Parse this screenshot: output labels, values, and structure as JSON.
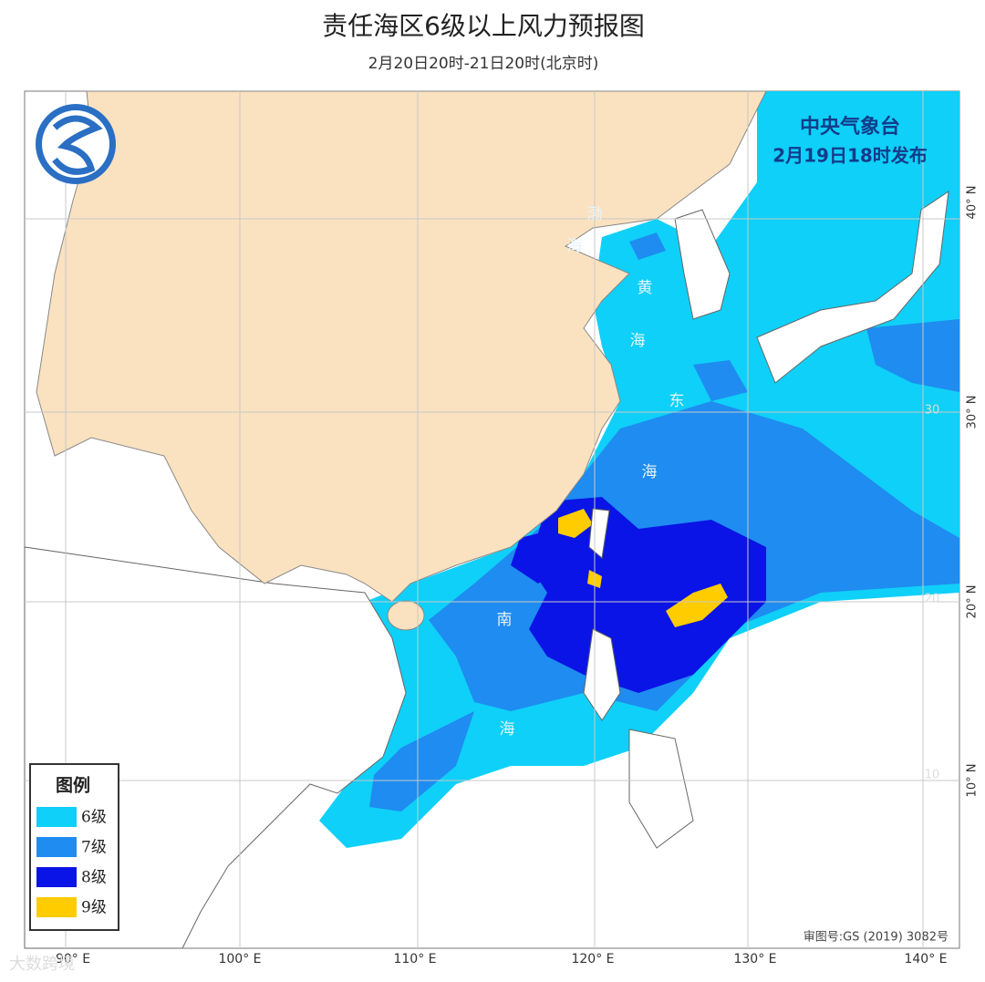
{
  "header": {
    "title": "责任海区6级以上风力预报图",
    "subtitle": "2月20日20时-21日20时(北京时)",
    "issuer": "中央气象台",
    "issued": "2月19日18时发布"
  },
  "legend": {
    "title": "图例",
    "items": [
      {
        "label": "6级",
        "color": "#0fd0f8"
      },
      {
        "label": "7级",
        "color": "#1e8cf0"
      },
      {
        "label": "8级",
        "color": "#0a14e6"
      },
      {
        "label": "9级",
        "color": "#ffcc00"
      }
    ]
  },
  "seas": [
    [
      "渤",
      "海"
    ],
    [
      "黄",
      "海"
    ],
    [
      "东",
      "海"
    ],
    [
      "南",
      "海"
    ]
  ],
  "lon_labels": [
    "90° E",
    "100° E",
    "110° E",
    "120° E",
    "130° E",
    "140° E"
  ],
  "lat_labels": [
    "40° N",
    "30° N",
    "20° N",
    "10° N"
  ],
  "grid_labels": [
    "30",
    "20",
    "10"
  ],
  "footer": {
    "approval": "审图号:GS (2019) 3082号",
    "watermark": "大数跨境"
  }
}
